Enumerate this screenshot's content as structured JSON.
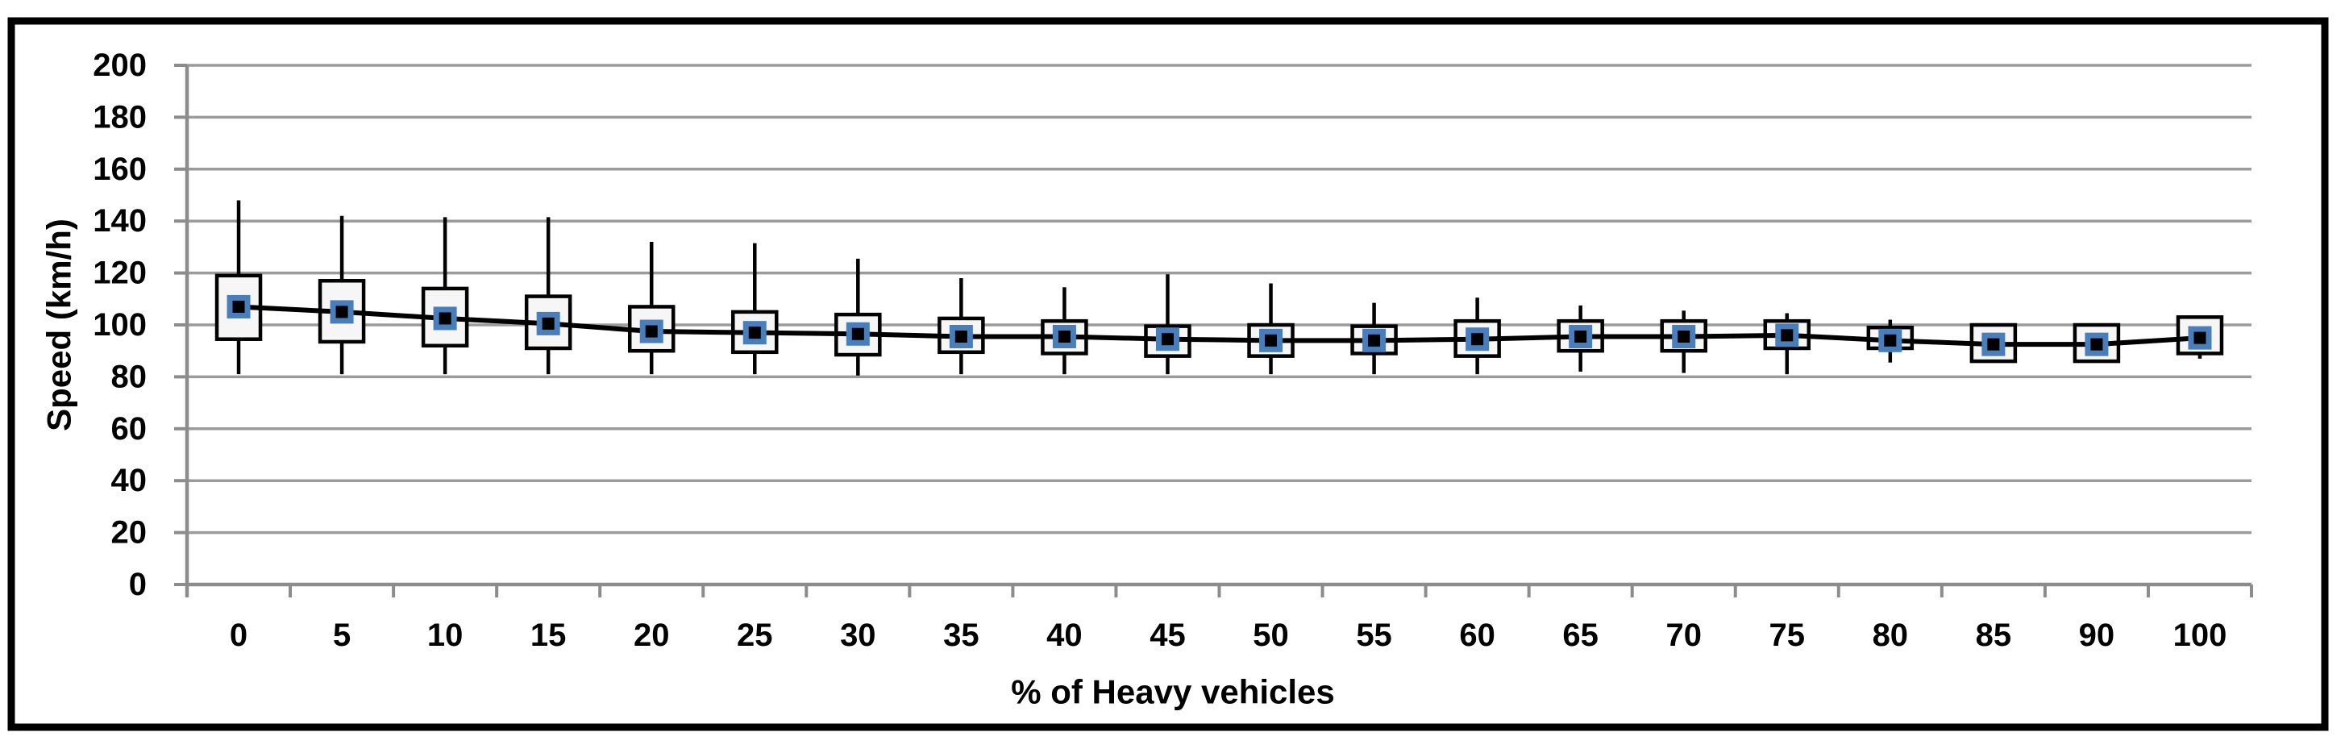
{
  "figure": {
    "background": "#ffffff",
    "border_color": "#000000"
  },
  "chart_data": {
    "type": "box",
    "title": "",
    "xlabel": "% of Heavy vehicles",
    "ylabel": "Speed (km/h)",
    "ylim": [
      0,
      200
    ],
    "ytick_step": 20,
    "ytick_labels": [
      "0",
      "20",
      "40",
      "60",
      "80",
      "100",
      "120",
      "140",
      "160",
      "180",
      "200"
    ],
    "grid": "horizontal",
    "legend": "none",
    "categories": [
      "0",
      "5",
      "10",
      "15",
      "20",
      "25",
      "30",
      "35",
      "40",
      "45",
      "50",
      "55",
      "60",
      "65",
      "70",
      "75",
      "80",
      "85",
      "90",
      "100"
    ],
    "boxes": [
      {
        "category": "0",
        "whisker_low": 81,
        "q1": 94.5,
        "mean": 107,
        "q3": 119,
        "whisker_high": 148
      },
      {
        "category": "5",
        "whisker_low": 81,
        "q1": 93.5,
        "mean": 105,
        "q3": 117,
        "whisker_high": 142
      },
      {
        "category": "10",
        "whisker_low": 81,
        "q1": 92,
        "mean": 102.5,
        "q3": 114,
        "whisker_high": 141.5
      },
      {
        "category": "15",
        "whisker_low": 81,
        "q1": 91,
        "mean": 100.5,
        "q3": 111,
        "whisker_high": 141.5
      },
      {
        "category": "20",
        "whisker_low": 81,
        "q1": 90,
        "mean": 97.5,
        "q3": 107,
        "whisker_high": 132
      },
      {
        "category": "25",
        "whisker_low": 81,
        "q1": 89.5,
        "mean": 97,
        "q3": 105,
        "whisker_high": 131.5
      },
      {
        "category": "30",
        "whisker_low": 80.5,
        "q1": 88.5,
        "mean": 96.5,
        "q3": 104,
        "whisker_high": 125.5
      },
      {
        "category": "35",
        "whisker_low": 81,
        "q1": 89.5,
        "mean": 95.5,
        "q3": 102.5,
        "whisker_high": 118
      },
      {
        "category": "40",
        "whisker_low": 81,
        "q1": 89,
        "mean": 95.5,
        "q3": 101.5,
        "whisker_high": 114.5
      },
      {
        "category": "45",
        "whisker_low": 81,
        "q1": 88,
        "mean": 94.5,
        "q3": 99.5,
        "whisker_high": 119.5
      },
      {
        "category": "50",
        "whisker_low": 81,
        "q1": 88,
        "mean": 94,
        "q3": 100,
        "whisker_high": 116
      },
      {
        "category": "55",
        "whisker_low": 81,
        "q1": 89,
        "mean": 94,
        "q3": 99.5,
        "whisker_high": 108.5
      },
      {
        "category": "60",
        "whisker_low": 81,
        "q1": 88,
        "mean": 94.5,
        "q3": 101.5,
        "whisker_high": 110.5
      },
      {
        "category": "65",
        "whisker_low": 82,
        "q1": 90,
        "mean": 95.5,
        "q3": 101.5,
        "whisker_high": 107.5
      },
      {
        "category": "70",
        "whisker_low": 81.5,
        "q1": 90,
        "mean": 95.5,
        "q3": 101.5,
        "whisker_high": 105.5
      },
      {
        "category": "75",
        "whisker_low": 81,
        "q1": 91,
        "mean": 96,
        "q3": 101.5,
        "whisker_high": 104.5
      },
      {
        "category": "80",
        "whisker_low": 85.5,
        "q1": 91,
        "mean": 94,
        "q3": 99,
        "whisker_high": 102
      },
      {
        "category": "85",
        "whisker_low": 86,
        "q1": 86,
        "mean": 92.5,
        "q3": 100,
        "whisker_high": 100
      },
      {
        "category": "90",
        "whisker_low": 86,
        "q1": 86,
        "mean": 92.5,
        "q3": 100,
        "whisker_high": 100
      },
      {
        "category": "100",
        "whisker_low": 87,
        "q1": 89,
        "mean": 95,
        "q3": 103,
        "whisker_high": 103
      }
    ],
    "mean_line": true,
    "colors": {
      "box_fill": "#f6f6f6",
      "box_border": "#000000",
      "whisker": "#000000",
      "mean_marker_fill": "#000000",
      "mean_marker_border": "#4a7ebb",
      "mean_line": "#000000",
      "gridline": "#9b9b9b",
      "axis": "#8c8c8c",
      "text": "#000000"
    }
  }
}
